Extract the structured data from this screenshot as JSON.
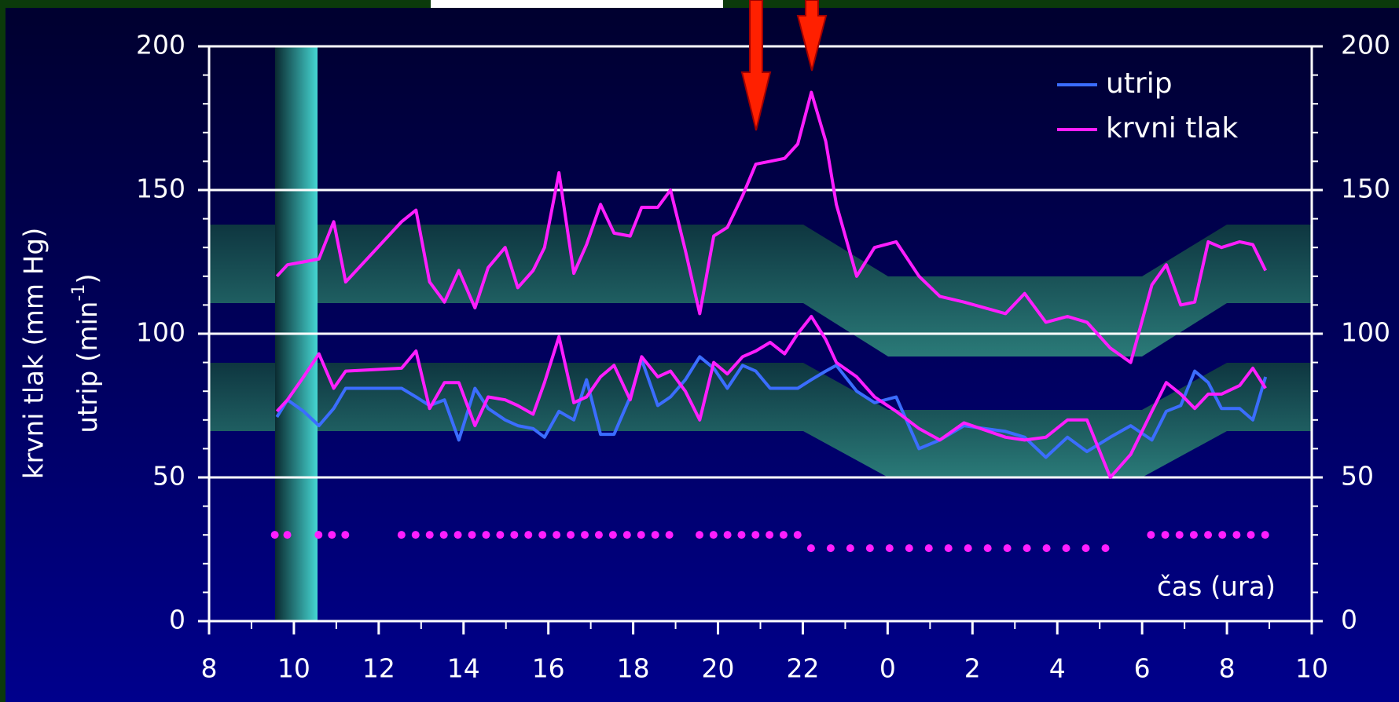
{
  "chart_data": {
    "type": "line",
    "yaxis_label": "krvni tlak (mm Hg)",
    "yaxis_label_2": {
      "text": "utrip (min",
      "sup": "-1",
      "end": ")"
    },
    "annotation": "čas (ura)",
    "x": [
      9.6,
      9.85,
      10.23,
      10.59,
      10.94,
      11.22,
      12.54,
      12.88,
      13.2,
      13.55,
      13.89,
      14.27,
      14.58,
      14.98,
      15.28,
      15.64,
      15.91,
      16.25,
      16.6,
      16.9,
      17.23,
      17.55,
      17.93,
      18.2,
      18.58,
      18.88,
      19.23,
      19.57,
      19.9,
      20.22,
      20.58,
      20.89,
      21.23,
      21.57,
      21.88,
      22.2,
      22.54,
      22.79,
      23.27,
      23.69,
      24.2,
      24.74,
      25.23,
      25.8,
      26.78,
      27.23,
      27.73,
      28.24,
      28.7,
      29.25,
      29.73,
      30.23,
      30.57,
      30.91,
      31.24,
      31.56,
      31.87,
      32.3,
      32.61,
      32.91
    ],
    "series": [
      {
        "name": "utrip",
        "color": "#3b6dff",
        "values": [
          71,
          77,
          73,
          68,
          74,
          81,
          81,
          78,
          75,
          77,
          63,
          81,
          74,
          70,
          68,
          67,
          64,
          73,
          70,
          84,
          65,
          65,
          78,
          91,
          75,
          78,
          84,
          92,
          88,
          81,
          89,
          87,
          81,
          81,
          81,
          84,
          87,
          89,
          80,
          76,
          78,
          60,
          63,
          68,
          66,
          64,
          57,
          64,
          59,
          64,
          68,
          63,
          73,
          75,
          87,
          83,
          74,
          74,
          70,
          85
        ]
      },
      {
        "name": "krvni tlak",
        "color": "#ff1eff",
        "values": [
          120,
          124,
          125,
          126,
          139,
          118,
          139,
          143,
          118,
          111,
          122,
          109,
          123,
          130,
          116,
          122,
          130,
          156,
          121,
          131,
          145,
          135,
          134,
          144,
          144,
          150,
          129,
          107,
          134,
          137,
          148,
          159,
          160,
          161,
          166,
          184,
          167,
          145,
          120,
          130,
          132,
          120,
          113,
          111,
          107,
          114,
          104,
          106,
          104,
          95,
          90,
          117,
          124,
          110,
          111,
          132,
          130,
          132,
          131,
          122
        ],
        "values_low": [
          73,
          77,
          85,
          93,
          81,
          87,
          88,
          94,
          74,
          83,
          83,
          68,
          78,
          77,
          75,
          72,
          83,
          99,
          76,
          78,
          85,
          89,
          77,
          92,
          85,
          87,
          80,
          70,
          90,
          86,
          92,
          94,
          97,
          93,
          100,
          106,
          98,
          90,
          85,
          78,
          73,
          67,
          63,
          69,
          64,
          63,
          64,
          70,
          70,
          50,
          58,
          73,
          83,
          79,
          74,
          79,
          79,
          82,
          88,
          81
        ]
      }
    ],
    "xlim": [
      8,
      34
    ],
    "xticks": [
      8,
      10,
      12,
      14,
      16,
      18,
      20,
      22,
      {
        "value": 24,
        "label": "0"
      },
      {
        "value": 26,
        "label": "2"
      },
      {
        "value": 28,
        "label": "4"
      },
      {
        "value": 30,
        "label": "6"
      },
      {
        "value": 32,
        "label": "8"
      },
      {
        "value": 34,
        "label": "10"
      }
    ],
    "xminorticks": [
      9,
      11,
      13,
      15,
      17,
      19,
      21,
      23,
      25,
      27,
      29,
      31,
      33
    ],
    "ylim": [
      0,
      200
    ],
    "yticks": [
      0,
      50,
      100,
      150,
      200
    ],
    "y2lim": [
      0,
      200
    ],
    "y2ticks": [
      0,
      50,
      100,
      150,
      200
    ],
    "yminorticks": [
      10,
      20,
      30,
      40,
      60,
      70,
      80,
      90,
      110,
      120,
      130,
      140,
      160,
      170,
      180,
      190
    ],
    "grid": true,
    "legend": "top-right"
  }
}
